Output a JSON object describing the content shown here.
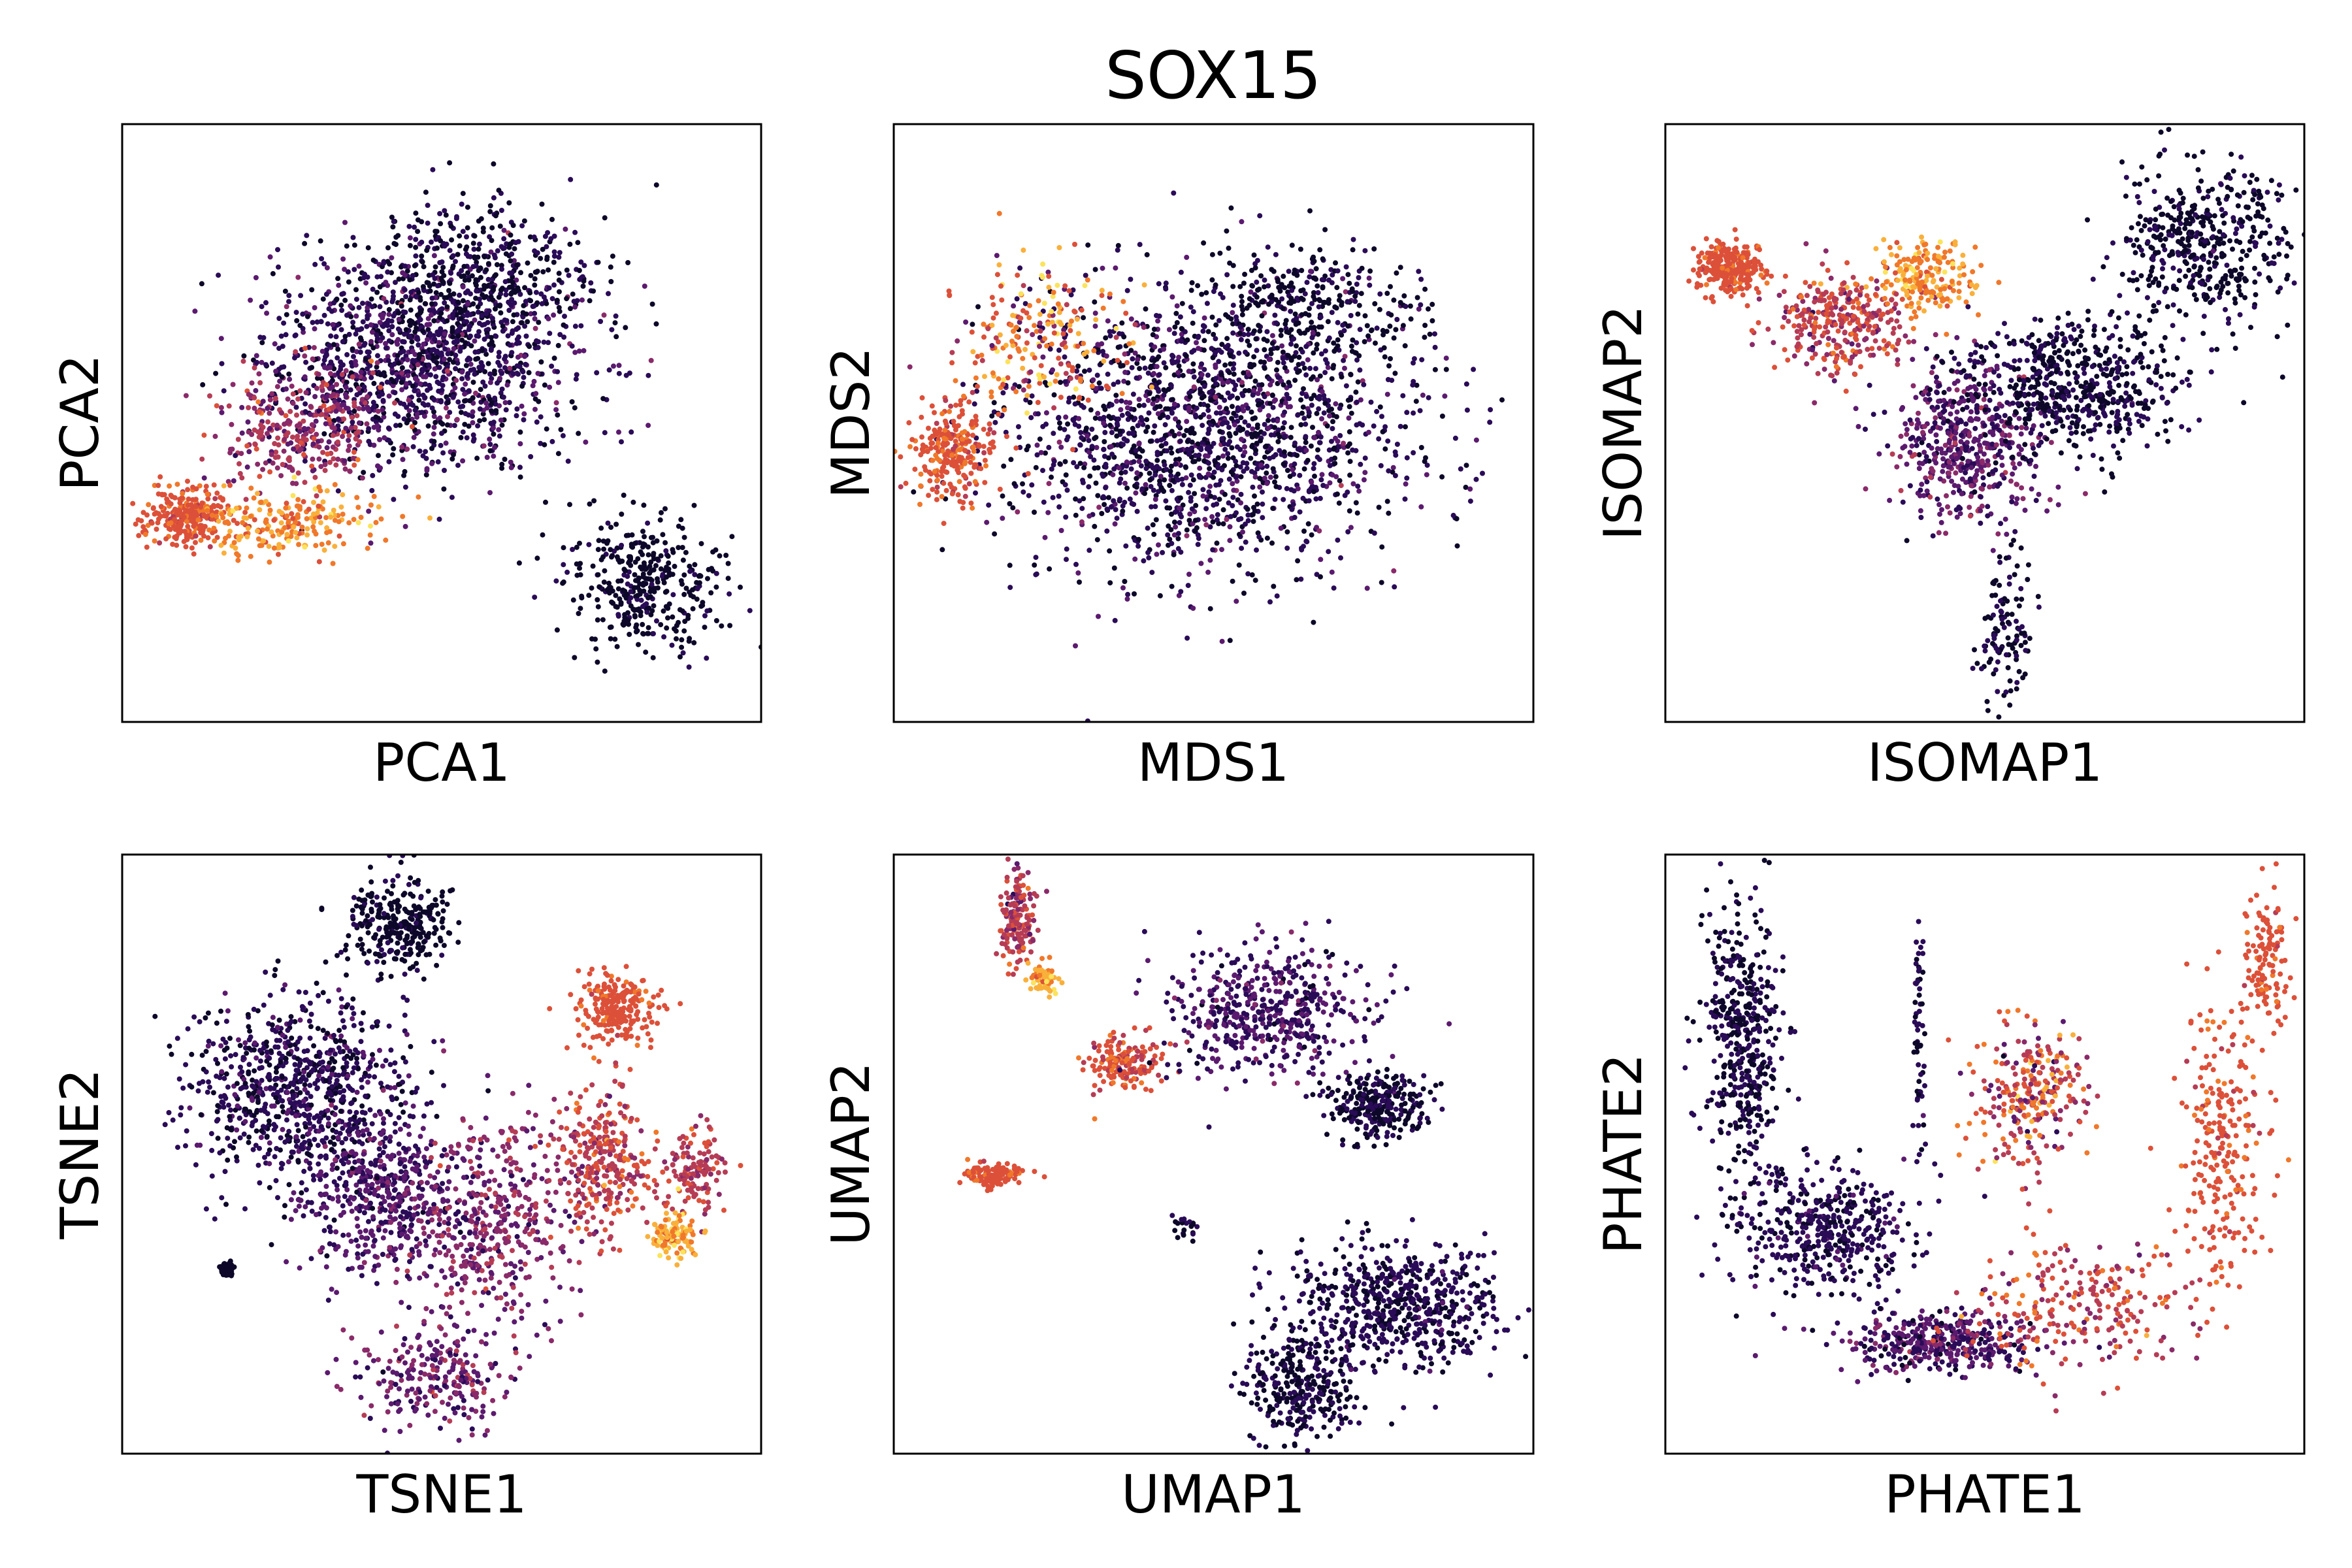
{
  "figure": {
    "title": "SOX15"
  },
  "colormap": {
    "name": "inferno",
    "stops": [
      "#0d0829",
      "#2a0b57",
      "#5b1a6e",
      "#8a2a69",
      "#b63c55",
      "#dc5039",
      "#f0782a",
      "#f9b03b",
      "#fbe35c"
    ]
  },
  "chart_data": [
    {
      "type": "scatter",
      "xlabel": "PCA1",
      "ylabel": "PCA2",
      "xticks": [],
      "yticks": [],
      "grid": false,
      "legend": "none"
    },
    {
      "type": "scatter",
      "xlabel": "MDS1",
      "ylabel": "MDS2",
      "xticks": [],
      "yticks": [],
      "grid": false,
      "legend": "none"
    },
    {
      "type": "scatter",
      "xlabel": "ISOMAP1",
      "ylabel": "ISOMAP2",
      "xticks": [],
      "yticks": [],
      "grid": false,
      "legend": "none"
    },
    {
      "type": "scatter",
      "xlabel": "TSNE1",
      "ylabel": "TSNE2",
      "xticks": [],
      "yticks": [],
      "grid": false,
      "legend": "none"
    },
    {
      "type": "scatter",
      "xlabel": "UMAP1",
      "ylabel": "UMAP2",
      "xticks": [],
      "yticks": [],
      "grid": false,
      "legend": "none"
    },
    {
      "type": "scatter",
      "xlabel": "PHATE1",
      "ylabel": "PHATE2",
      "xticks": [],
      "yticks": [],
      "grid": false,
      "legend": "none"
    }
  ]
}
